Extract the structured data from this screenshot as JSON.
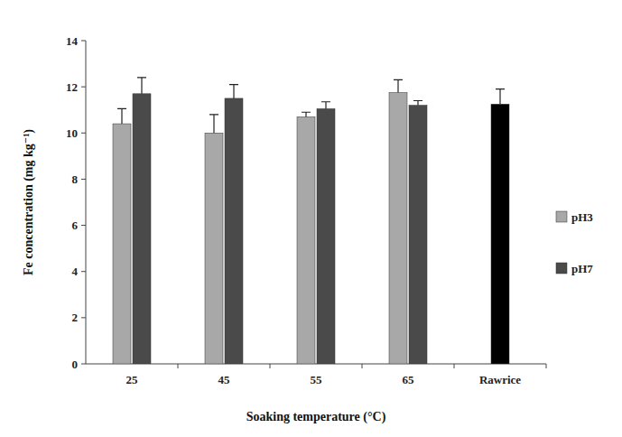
{
  "chart_data": {
    "type": "bar",
    "x_label": "Soaking temperature (°C)",
    "y_label": "Fe concentration (mg kg⁻¹)",
    "categories": [
      "25",
      "45",
      "55",
      "65",
      "Rawrice"
    ],
    "series": [
      {
        "name": "pH3",
        "color": "#a8a8a8",
        "values": [
          10.4,
          10.0,
          10.7,
          11.75,
          null
        ],
        "errors": [
          0.65,
          0.8,
          0.2,
          0.55,
          null
        ]
      },
      {
        "name": "pH7",
        "color": "#4a4a4a",
        "values": [
          11.7,
          11.5,
          11.05,
          11.2,
          null
        ],
        "errors": [
          0.7,
          0.6,
          0.3,
          0.2,
          null
        ]
      },
      {
        "color": "#000000",
        "values": [
          null,
          null,
          null,
          null,
          11.25
        ],
        "errors": [
          null,
          null,
          null,
          null,
          0.65
        ]
      }
    ],
    "ylim": [
      0,
      14
    ],
    "yticks": [
      0,
      2,
      4,
      6,
      8,
      10,
      12,
      14
    ],
    "grid": false,
    "legend": "right"
  }
}
